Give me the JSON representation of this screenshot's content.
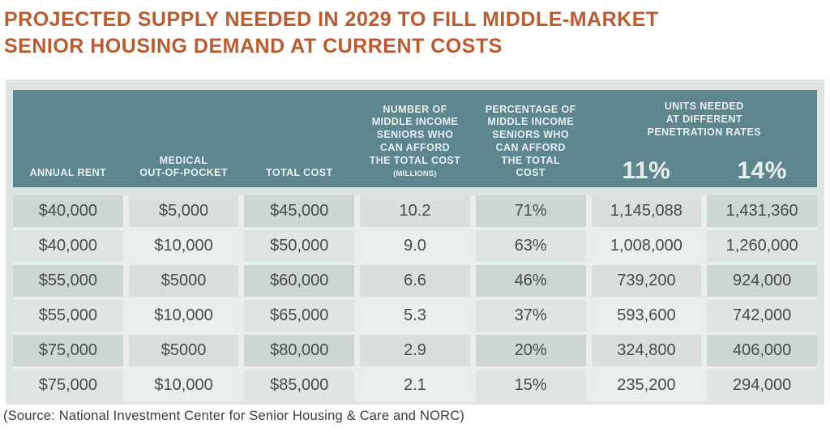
{
  "title": {
    "line1": "PROJECTED SUPPLY NEEDED IN 2029 TO FILL MIDDLE-MARKET",
    "line2": "SENIOR HOUSING DEMAND AT CURRENT COSTS"
  },
  "colors": {
    "title_accent": "#bd5a2c",
    "header_bg": "#5e868f",
    "header_text": "#e9efee",
    "panel_bg": "#dce3e1",
    "cell_dark": "#ccd6d5",
    "cell_light": "#ebeeee",
    "cell_text": "#4a4a4a"
  },
  "table": {
    "header": {
      "annual_rent": "ANNUAL RENT",
      "medical_out_of_pocket": "MEDICAL\nOUT-OF-POCKET",
      "total_cost": "TOTAL COST",
      "number_affording": "NUMBER OF\nMIDDLE INCOME\nSENIORS WHO\nCAN AFFORD\nTHE TOTAL",
      "number_affording_last": "COST",
      "number_affording_unit": "(MILLIONS)",
      "percentage_affording": "PERCENTAGE OF\nMIDDLE INCOME\nSENIORS WHO\nCAN AFFORD\nTHE TOTAL\nCOST",
      "units_needed": "UNITS NEEDED\nAT DIFFERENT\nPENETRATION RATES",
      "penetration_rates": [
        "11%",
        "14%"
      ]
    },
    "rows": [
      [
        "$40,000",
        "$5,000",
        "$45,000",
        "10.2",
        "71%",
        "1,145,088",
        "1,431,360"
      ],
      [
        "$40,000",
        "$10,000",
        "$50,000",
        "9.0",
        "63%",
        "1,008,000",
        "1,260,000"
      ],
      [
        "$55,000",
        "$5000",
        "$60,000",
        "6.6",
        "46%",
        "739,200",
        "924,000"
      ],
      [
        "$55,000",
        "$10,000",
        "$65,000",
        "5.3",
        "37%",
        "593,600",
        "742,000"
      ],
      [
        "$75,000",
        "$5000",
        "$80,000",
        "2.9",
        "20%",
        "324,800",
        "406,000"
      ],
      [
        "$75,000",
        "$10,000",
        "$85,000",
        "2.1",
        "15%",
        "235,200",
        "294,000"
      ]
    ]
  },
  "source": "(Source: National Investment Center for Senior Housing & Care and NORC)",
  "chart_data": {
    "type": "table",
    "title": "PROJECTED SUPPLY NEEDED IN 2029 TO FILL MIDDLE-MARKET SENIOR HOUSING DEMAND AT CURRENT COSTS",
    "columns": [
      "Annual Rent",
      "Medical Out-of-Pocket",
      "Total Cost",
      "Number of Middle Income Seniors Who Can Afford the Total Cost (Millions)",
      "Percentage of Middle Income Seniors Who Can Afford the Total Cost",
      "Units Needed at 11% Penetration Rate",
      "Units Needed at 14% Penetration Rate"
    ],
    "rows": [
      [
        40000,
        5000,
        45000,
        10.2,
        71,
        1145088,
        1431360
      ],
      [
        40000,
        10000,
        50000,
        9.0,
        63,
        1008000,
        1260000
      ],
      [
        55000,
        5000,
        60000,
        6.6,
        46,
        739200,
        924000
      ],
      [
        55000,
        10000,
        65000,
        5.3,
        37,
        593600,
        742000
      ],
      [
        75000,
        5000,
        80000,
        2.9,
        20,
        324800,
        406000
      ],
      [
        75000,
        10000,
        85000,
        2.1,
        15,
        235200,
        294000
      ]
    ],
    "source": "(Source: National Investment Center for Senior Housing & Care and NORC)"
  }
}
